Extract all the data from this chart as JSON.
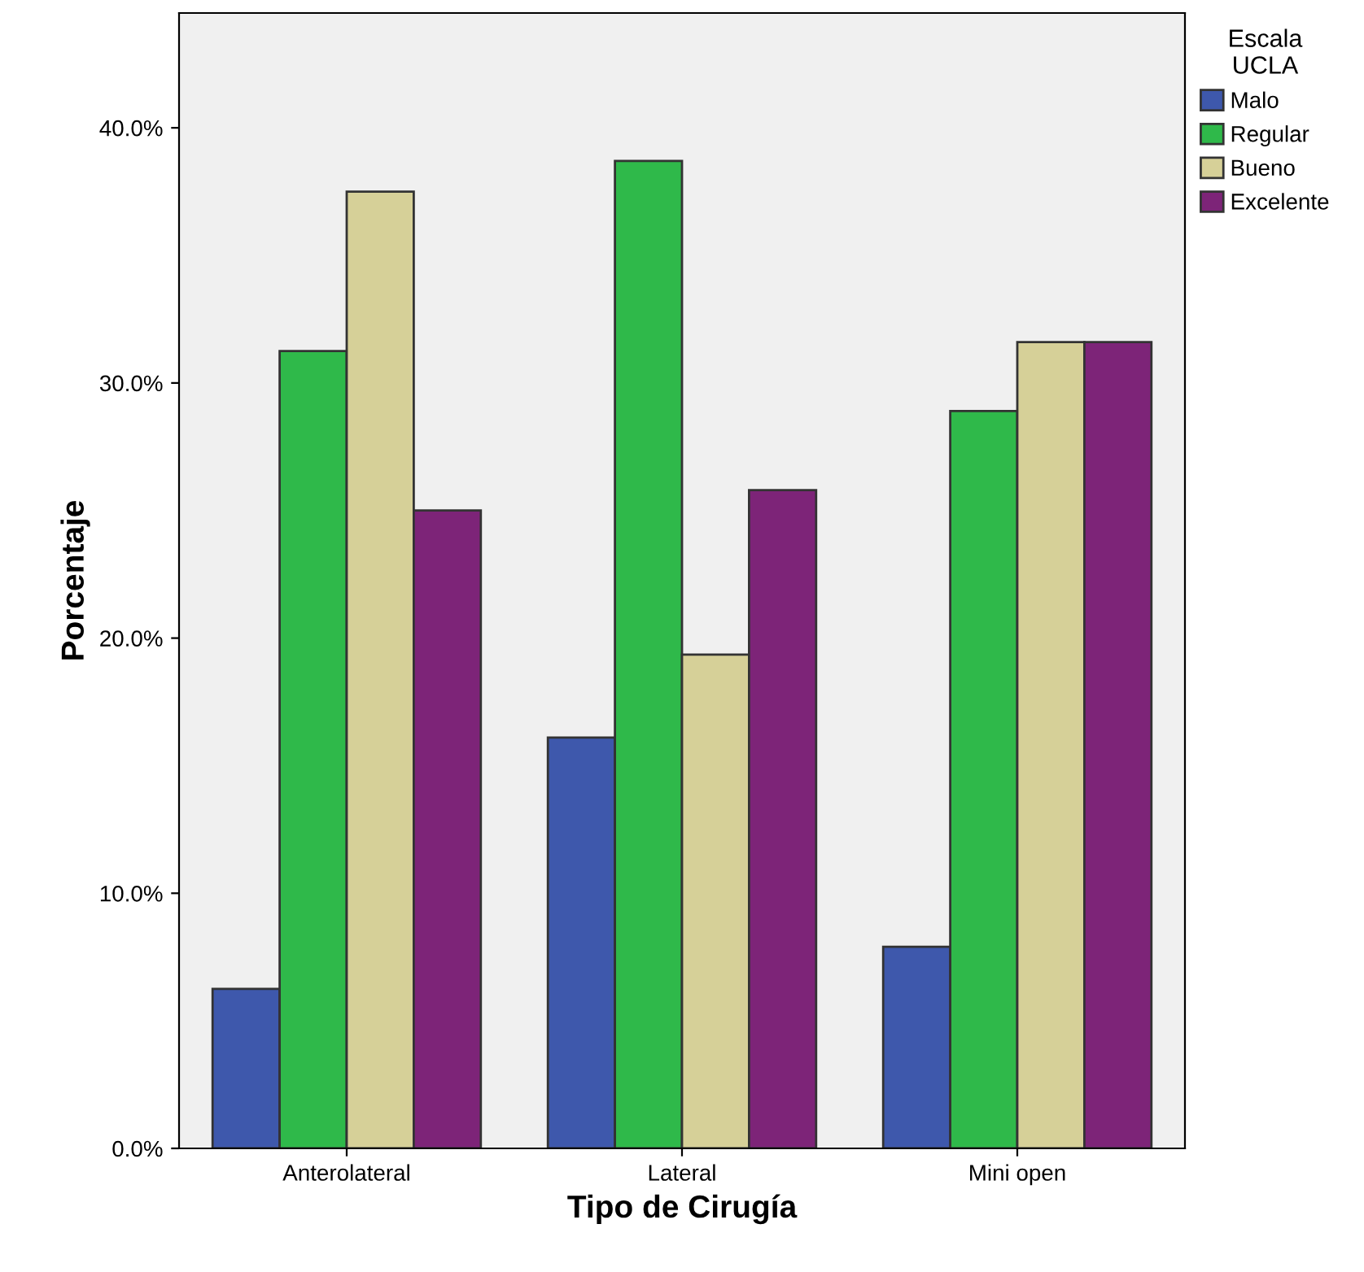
{
  "chart_data": {
    "type": "bar",
    "xlabel": "Tipo de Cirugía",
    "ylabel": "Porcentaje",
    "legend_title": "Escala\nUCLA",
    "categories": [
      "Anterolateral",
      "Lateral",
      "Mini open"
    ],
    "series": [
      {
        "name": "Malo",
        "color": "#3e58ac",
        "values": [
          6.25,
          16.1,
          7.9
        ]
      },
      {
        "name": "Regular",
        "color": "#2fb94a",
        "values": [
          31.25,
          38.7,
          28.9
        ]
      },
      {
        "name": "Bueno",
        "color": "#d6d098",
        "values": [
          37.5,
          19.35,
          31.6
        ]
      },
      {
        "name": "Excelente",
        "color": "#7d2478",
        "values": [
          25.0,
          25.8,
          31.6
        ]
      }
    ],
    "ylim": [
      0,
      44.5
    ],
    "yticks": [
      {
        "value": 0,
        "label": "0.0%"
      },
      {
        "value": 10,
        "label": "10.0%"
      },
      {
        "value": 20,
        "label": "20.0%"
      },
      {
        "value": 30,
        "label": "30.0%"
      },
      {
        "value": 40,
        "label": "40.0%"
      }
    ],
    "legend": "top right",
    "grid": false
  }
}
